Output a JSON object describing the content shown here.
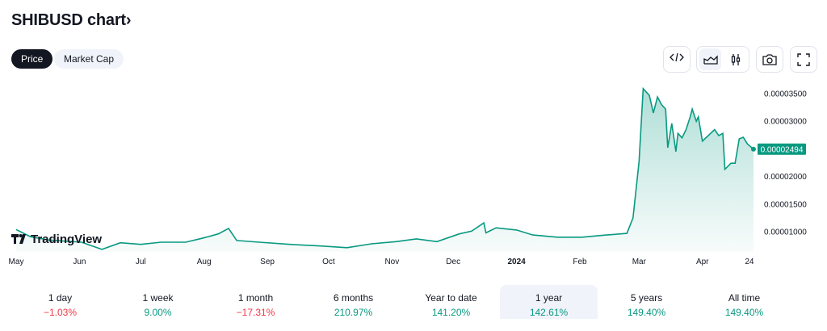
{
  "header": {
    "title": "SHIBUSD chart",
    "chevron": "›"
  },
  "tabs": [
    {
      "label": "Price",
      "active": true
    },
    {
      "label": "Market Cap",
      "active": false
    }
  ],
  "toolbar": {
    "icons": [
      "embed-code-icon",
      "area-chart-icon",
      "candlestick-chart-icon",
      "camera-icon",
      "fullscreen-icon"
    ]
  },
  "colors": {
    "line": "#089981",
    "up": "#089981",
    "down": "#f23645"
  },
  "watermark": "TradingView",
  "chart_data": {
    "type": "area",
    "title": "SHIBUSD",
    "x_unit": "days since May 1 2023",
    "x_ticks": [
      {
        "label": "May",
        "day": 0
      },
      {
        "label": "Jun",
        "day": 31
      },
      {
        "label": "Jul",
        "day": 61
      },
      {
        "label": "Aug",
        "day": 92
      },
      {
        "label": "Sep",
        "day": 123
      },
      {
        "label": "Oct",
        "day": 153
      },
      {
        "label": "Nov",
        "day": 184
      },
      {
        "label": "Dec",
        "day": 214
      },
      {
        "label": "2024",
        "day": 245,
        "bold": true
      },
      {
        "label": "Feb",
        "day": 276
      },
      {
        "label": "Mar",
        "day": 305
      },
      {
        "label": "Apr",
        "day": 336
      },
      {
        "label": "24",
        "day": 359
      }
    ],
    "y_ticks": [
      "0.00003500",
      "0.00003000",
      "0.00002000",
      "0.00001500",
      "0.00001000"
    ],
    "y_tick_values": [
      35,
      30,
      20,
      15,
      10
    ],
    "y_unit": "1e-6 USD",
    "ylim": [
      6,
      37
    ],
    "last_price_label": "0.00002494",
    "last_price": 24.94,
    "x": [
      0,
      7,
      16,
      32,
      42,
      51,
      61,
      71,
      83,
      91,
      99,
      104,
      108,
      119,
      134,
      150,
      162,
      174,
      186,
      196,
      206,
      217,
      223,
      229,
      230,
      235,
      245,
      253,
      265,
      277,
      289,
      299,
      302,
      305,
      307,
      310,
      312,
      314,
      316,
      318,
      319,
      321,
      323,
      324,
      326,
      328,
      330,
      331,
      333,
      334,
      336,
      338,
      340,
      342,
      344,
      346,
      347,
      350,
      352,
      354,
      356,
      358,
      361
    ],
    "y": [
      10.4,
      9.1,
      8.5,
      8.1,
      6.8,
      8.0,
      7.7,
      8.1,
      8.1,
      8.8,
      9.6,
      10.6,
      8.4,
      8.1,
      7.7,
      7.4,
      7.1,
      7.8,
      8.2,
      8.7,
      8.2,
      9.6,
      10.1,
      11.6,
      9.8,
      10.7,
      10.3,
      9.4,
      9.0,
      9.0,
      9.4,
      9.7,
      12.5,
      22.7,
      35.9,
      34.7,
      31.5,
      34.4,
      33.0,
      32.2,
      25.2,
      29.6,
      24.5,
      27.8,
      27.0,
      28.5,
      30.8,
      32.2,
      30.0,
      30.8,
      26.4,
      27.1,
      27.8,
      28.5,
      27.4,
      27.8,
      21.3,
      22.4,
      22.4,
      26.8,
      27.1,
      25.9,
      24.94
    ]
  },
  "performance": [
    {
      "label": "1 day",
      "value": "−1.03%",
      "dir": "down"
    },
    {
      "label": "1 week",
      "value": "9.00%",
      "dir": "up"
    },
    {
      "label": "1 month",
      "value": "−17.31%",
      "dir": "down"
    },
    {
      "label": "6 months",
      "value": "210.97%",
      "dir": "up"
    },
    {
      "label": "Year to date",
      "value": "141.20%",
      "dir": "up"
    },
    {
      "label": "1 year",
      "value": "142.61%",
      "dir": "up",
      "selected": true
    },
    {
      "label": "5 years",
      "value": "149.40%",
      "dir": "up"
    },
    {
      "label": "All time",
      "value": "149.40%",
      "dir": "up"
    }
  ]
}
